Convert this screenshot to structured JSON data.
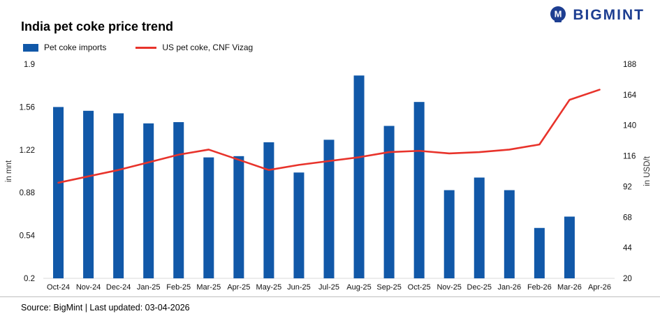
{
  "logo": {
    "text": "BIGMINT"
  },
  "header": {
    "title": "India pet coke price trend"
  },
  "legend": [
    {
      "label": "Pet coke imports",
      "type": "bar",
      "color": "#1158a8"
    },
    {
      "label": "US pet coke, CNF Vizag",
      "type": "line",
      "color": "#e8332b"
    }
  ],
  "chart_data": {
    "type": "bar",
    "title": "India pet coke price trend",
    "categories": [
      "Oct-24",
      "Nov-24",
      "Dec-24",
      "Jan-25",
      "Feb-25",
      "Mar-25",
      "Apr-25",
      "May-25",
      "Jun-25",
      "Jul-25",
      "Aug-25",
      "Sep-25",
      "Oct-25",
      "Nov-25",
      "Dec-25",
      "Jan-26",
      "Feb-26",
      "Mar-26",
      "Apr-26"
    ],
    "series": [
      {
        "name": "Pet coke imports",
        "type": "bar",
        "axis": "left",
        "unit": "mnt",
        "color": "#1158a8",
        "values": [
          1.56,
          1.53,
          1.51,
          1.43,
          1.44,
          1.16,
          1.17,
          1.28,
          1.04,
          1.3,
          1.81,
          1.41,
          1.6,
          0.9,
          1.0,
          0.9,
          0.6,
          0.69,
          null
        ]
      },
      {
        "name": "US pet coke, CNF Vizag",
        "type": "line",
        "axis": "right",
        "unit": "USD/t",
        "color": "#e8332b",
        "values": [
          95,
          100,
          105,
          111,
          117,
          121,
          113,
          105,
          109,
          112,
          115,
          119,
          120,
          118,
          119,
          121,
          125,
          160,
          168
        ]
      }
    ],
    "left_axis": {
      "label": "in mnt",
      "min": 0.2,
      "max": 1.9,
      "ticks": [
        "1.9",
        "1.56",
        "1.22",
        "0.88",
        "0.54",
        "0.2"
      ]
    },
    "right_axis": {
      "label": "in USD/t",
      "min": 20,
      "max": 188,
      "ticks": [
        "188",
        "164",
        "140",
        "116",
        "92",
        "68",
        "44",
        "20"
      ]
    },
    "grid": false,
    "legend_position": "top-left"
  },
  "footer": {
    "text": "Source: BigMint | Last updated: 03-04-2026"
  }
}
